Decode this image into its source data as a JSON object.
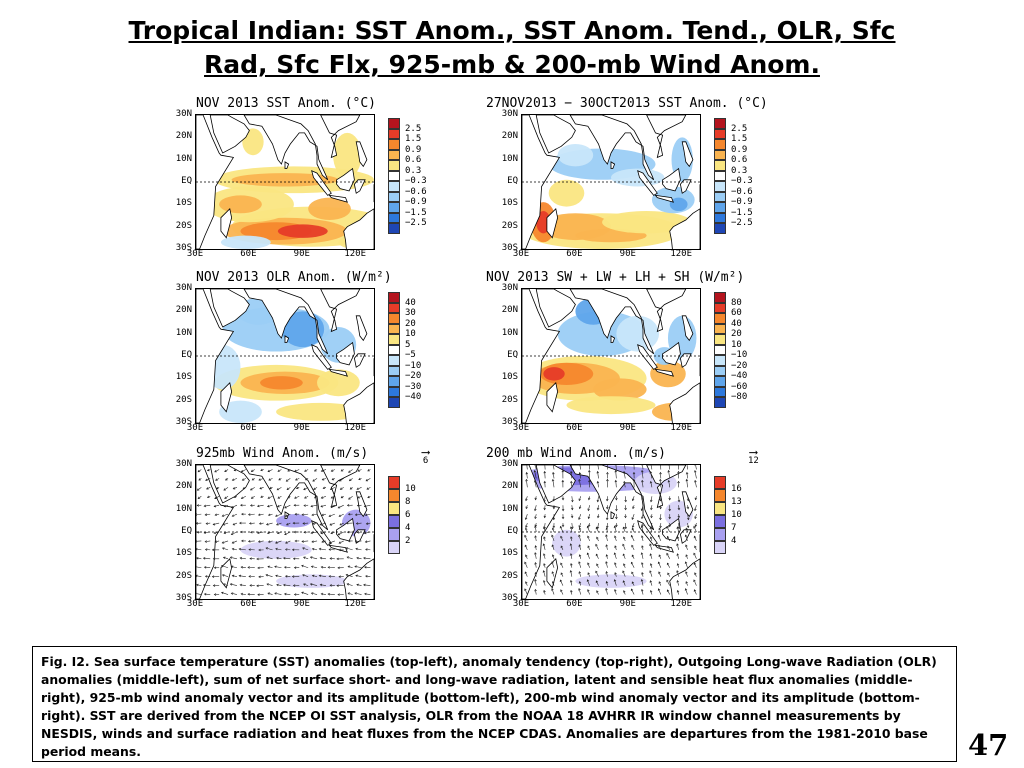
{
  "slide": {
    "title_line1": "Tropical Indian: SST Anom., SST Anom. Tend., OLR, Sfc",
    "title_line2": "Rad, Sfc Flx, 925-mb & 200-mb Wind Anom.",
    "caption": "Fig. I2. Sea surface temperature (SST) anomalies (top-left), anomaly tendency (top-right), Outgoing Long-wave Radiation (OLR) anomalies (middle-left), sum of net surface short- and long-wave radiation, latent and sensible heat flux anomalies (middle-right), 925-mb wind anomaly vector and its amplitude (bottom-left), 200-mb wind anomaly vector and its amplitude  (bottom-right). SST are derived from the NCEP OI SST analysis, OLR from the NOAA 18 AVHRR IR window channel measurements by NESDIS, winds and surface radiation and heat fluxes from the NCEP CDAS. Anomalies are  departures from the 1981-2010 base period means.",
    "slide_number": "47"
  },
  "axes": {
    "lat_labels": [
      "30N",
      "20N",
      "10N",
      "EQ",
      "10S",
      "20S",
      "30S"
    ],
    "lon_labels": [
      "30E",
      "60E",
      "90E",
      "120E"
    ]
  },
  "colors": {
    "dark_red": "#b4141e",
    "red": "#e63c28",
    "orange": "#f5872d",
    "light_orange": "#fab450",
    "yellow": "#fae682",
    "white": "#ffffff",
    "pale_blue": "#c8e6fa",
    "light_blue": "#9bcdf5",
    "mid_blue": "#5fa5eb",
    "blue": "#2d78dc",
    "dark_blue": "#1e46b4",
    "lavender_pale": "#d9d4f7",
    "lavender": "#a9a0f0",
    "purple": "#7b6fe0",
    "land": "#ffffff"
  },
  "panels": [
    {
      "id": "sst",
      "title": "NOV 2013 SST Anom. (°C)",
      "type": "shaded",
      "colorbar": [
        "2.5",
        "1.5",
        "0.9",
        "0.6",
        "0.3",
        "−0.3",
        "−0.6",
        "−0.9",
        "−1.5",
        "−2.5"
      ]
    },
    {
      "id": "sst-tend",
      "title": "27NOV2013 − 30OCT2013 SST Anom. (°C)",
      "type": "shaded",
      "colorbar": [
        "2.5",
        "1.5",
        "0.9",
        "0.6",
        "0.3",
        "−0.3",
        "−0.6",
        "−0.9",
        "−1.5",
        "−2.5"
      ]
    },
    {
      "id": "olr",
      "title": "NOV 2013 OLR Anom. (W/m²)",
      "type": "shaded",
      "colorbar": [
        "40",
        "30",
        "20",
        "10",
        "5",
        "−5",
        "−10",
        "−20",
        "−30",
        "−40"
      ]
    },
    {
      "id": "flux",
      "title": "NOV 2013 SW + LW + LH + SH (W/m²)",
      "type": "shaded",
      "colorbar": [
        "80",
        "60",
        "40",
        "20",
        "10",
        "−10",
        "−20",
        "−40",
        "−60",
        "−80"
      ]
    },
    {
      "id": "wind925",
      "title": "925mb Wind Anom. (m/s)",
      "type": "wind",
      "ref_vector": "6",
      "colorbar": [
        "10",
        "8",
        "6",
        "4",
        "2"
      ]
    },
    {
      "id": "wind200",
      "title": "200 mb Wind Anom. (m/s)",
      "type": "wind",
      "ref_vector": "12",
      "colorbar": [
        "16",
        "13",
        "10",
        "7",
        "4"
      ]
    }
  ]
}
